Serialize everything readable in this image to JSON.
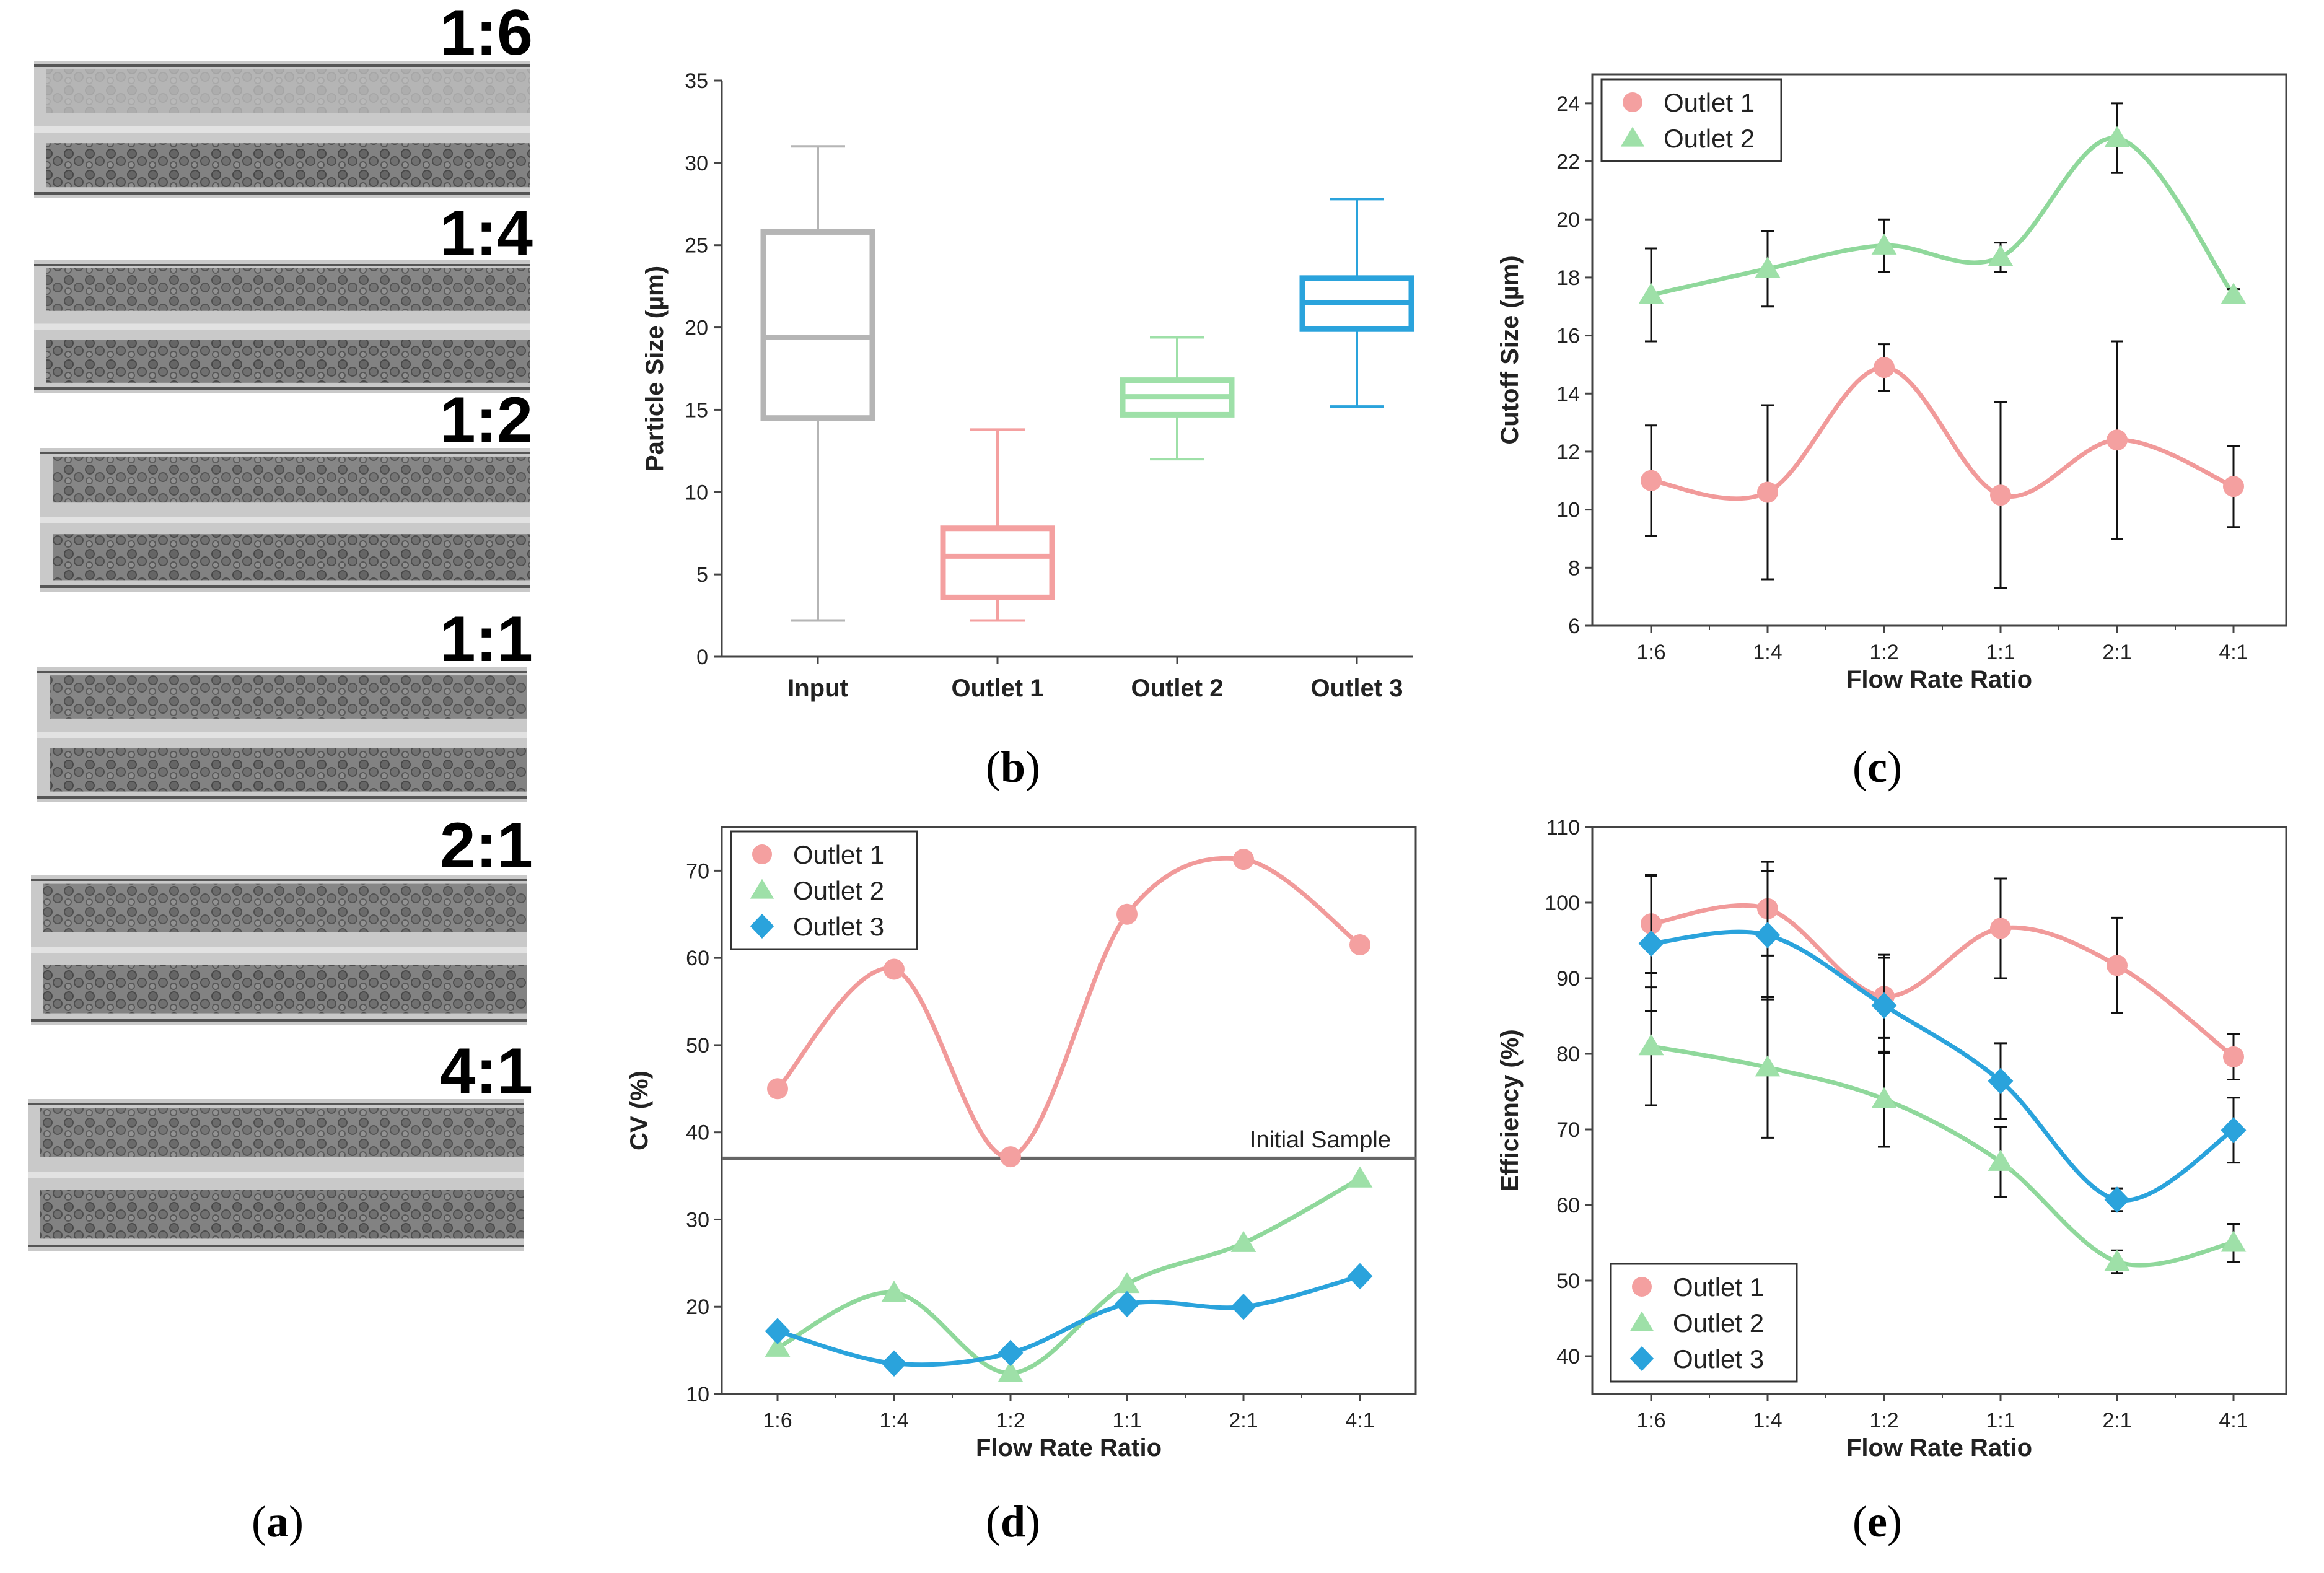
{
  "panels": {
    "a": "a",
    "b": "b",
    "c": "c",
    "d": "d",
    "e": "e"
  },
  "colors": {
    "outlet1": "#f4a0a0",
    "outlet1_line": "#f19a9a",
    "outlet2": "#9ee0a8",
    "outlet2_line": "#8fd89b",
    "outlet3": "#2aa3dc",
    "input": "#b5b5b5",
    "axis": "#444444"
  },
  "micrographs": {
    "ratios": [
      "1:6",
      "1:4",
      "1:2",
      "1:1",
      "2:1",
      "4:1"
    ]
  },
  "chart_data": [
    {
      "id": "b",
      "type": "box",
      "categories": [
        "Input",
        "Outlet 1",
        "Outlet 2",
        "Outlet 3"
      ],
      "ylabel": "Particle Size (µm)",
      "ylim": [
        0,
        35
      ],
      "yticks": [
        0,
        5,
        10,
        15,
        20,
        25,
        30,
        35
      ],
      "boxes": [
        {
          "name": "Input",
          "min": 2.2,
          "q1": 14.5,
          "median": 19.4,
          "q3": 25.8,
          "max": 31.0
        },
        {
          "name": "Outlet 1",
          "min": 2.2,
          "q1": 3.6,
          "median": 6.1,
          "q3": 7.8,
          "max": 13.8
        },
        {
          "name": "Outlet 2",
          "min": 12.0,
          "q1": 14.7,
          "median": 15.8,
          "q3": 16.8,
          "max": 19.4
        },
        {
          "name": "Outlet 3",
          "min": 15.2,
          "q1": 19.9,
          "median": 21.5,
          "q3": 23.0,
          "max": 27.8
        }
      ]
    },
    {
      "id": "c",
      "type": "line",
      "categories": [
        "1:6",
        "1:4",
        "1:2",
        "1:1",
        "2:1",
        "4:1"
      ],
      "xlabel": "Flow Rate Ratio",
      "ylabel": "Cutoff Size (µm)",
      "ylim": [
        6,
        25
      ],
      "yticks": [
        6,
        8,
        10,
        12,
        14,
        16,
        18,
        20,
        22,
        24
      ],
      "legend_position": "top-left",
      "series": [
        {
          "name": "Outlet 1",
          "marker": "circle",
          "values": [
            11.0,
            10.6,
            14.9,
            10.5,
            12.4,
            10.8
          ],
          "errors": [
            1.9,
            3.0,
            0.8,
            3.2,
            3.4,
            1.4
          ]
        },
        {
          "name": "Outlet 2",
          "marker": "triangle",
          "values": [
            17.4,
            18.3,
            19.1,
            18.7,
            22.8,
            17.4
          ],
          "errors": [
            1.6,
            1.3,
            0.9,
            0.5,
            1.2,
            0.2
          ]
        }
      ]
    },
    {
      "id": "d",
      "type": "line",
      "categories": [
        "1:6",
        "1:4",
        "1:2",
        "1:1",
        "2:1",
        "4:1"
      ],
      "xlabel": "Flow Rate Ratio",
      "ylabel": "CV (%)",
      "ylim": [
        10,
        75
      ],
      "yticks": [
        10,
        20,
        30,
        40,
        50,
        60,
        70
      ],
      "legend_position": "top-left",
      "reference_line": {
        "label": "Initial Sample",
        "value": 37.0
      },
      "series": [
        {
          "name": "Outlet 1",
          "marker": "circle",
          "values": [
            45.0,
            58.7,
            37.2,
            65.0,
            71.3,
            61.5
          ]
        },
        {
          "name": "Outlet 2",
          "marker": "triangle",
          "values": [
            15.3,
            21.6,
            12.4,
            22.6,
            27.3,
            34.7
          ]
        },
        {
          "name": "Outlet 3",
          "marker": "diamond",
          "values": [
            17.2,
            13.5,
            14.7,
            20.3,
            20.0,
            23.5
          ]
        }
      ]
    },
    {
      "id": "e",
      "type": "line",
      "categories": [
        "1:6",
        "1:4",
        "1:2",
        "1:1",
        "2:1",
        "4:1"
      ],
      "xlabel": "Flow Rate Ratio",
      "ylabel": "Efficiency (%)",
      "ylim": [
        35,
        110
      ],
      "yticks": [
        40,
        50,
        60,
        70,
        80,
        90,
        100,
        110
      ],
      "legend_position": "bottom-left",
      "series": [
        {
          "name": "Outlet 1",
          "marker": "circle",
          "values": [
            97.2,
            99.2,
            87.6,
            96.6,
            91.7,
            79.6
          ],
          "errors": [
            6.5,
            6.2,
            5.5,
            6.6,
            6.3,
            3.0
          ]
        },
        {
          "name": "Outlet 2",
          "marker": "triangle",
          "values": [
            81.0,
            78.2,
            74.0,
            65.7,
            52.5,
            55.0
          ],
          "errors": [
            7.8,
            9.3,
            6.3,
            4.6,
            1.5,
            2.5
          ]
        },
        {
          "name": "Outlet 3",
          "marker": "diamond",
          "values": [
            94.6,
            95.7,
            86.4,
            76.4,
            60.7,
            69.9
          ],
          "errors": [
            8.9,
            8.5,
            6.3,
            5.0,
            1.5,
            4.3
          ]
        }
      ]
    }
  ]
}
